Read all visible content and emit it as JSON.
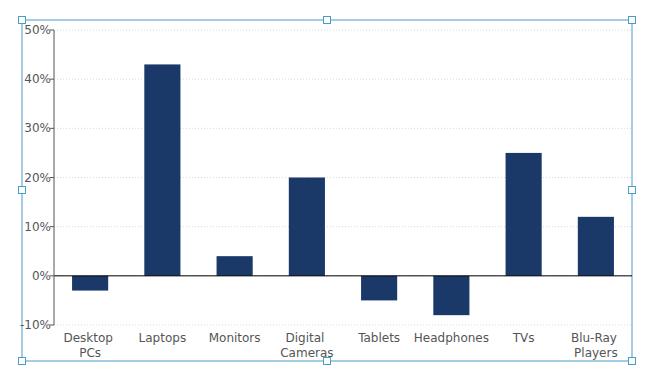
{
  "chart_data": {
    "type": "bar",
    "categories": [
      "Desktop PCs",
      "Laptops",
      "Monitors",
      "Digital Cameras",
      "Tablets",
      "Headphones",
      "TVs",
      "Blu-Ray Players"
    ],
    "values": [
      -3,
      43,
      4,
      20,
      -5,
      -8,
      25,
      12
    ],
    "color": "#1b3968",
    "ylim": [
      -10,
      50
    ],
    "yticks": [
      {
        "value": -10,
        "label": "-10%"
      },
      {
        "value": 0,
        "label": "0%"
      },
      {
        "value": 10,
        "label": "10%"
      },
      {
        "value": 20,
        "label": "20%"
      },
      {
        "value": 30,
        "label": "30%"
      },
      {
        "value": 40,
        "label": "40%"
      },
      {
        "value": 50,
        "label": "50%"
      }
    ],
    "grid": true
  }
}
